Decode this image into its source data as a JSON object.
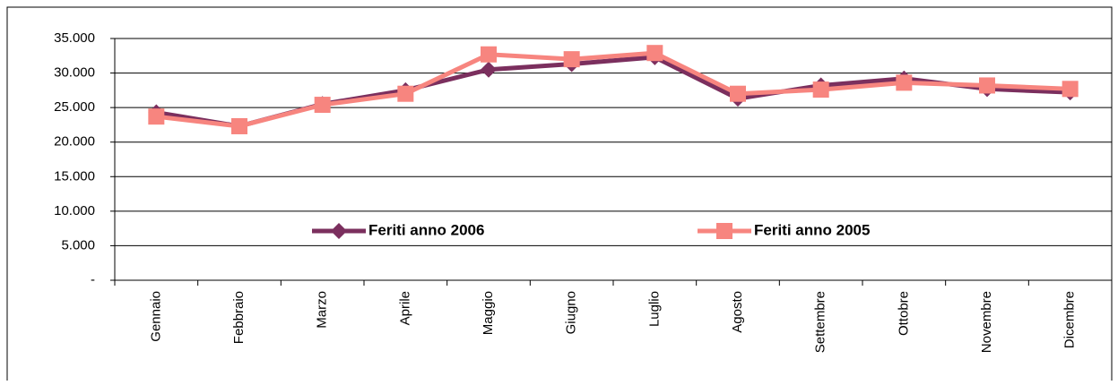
{
  "chart_data": {
    "type": "line",
    "categories": [
      "Gennaio",
      "Febbraio",
      "Marzo",
      "Aprile",
      "Maggio",
      "Giugno",
      "Luglio",
      "Agosto",
      "Settembre",
      "Ottobre",
      "Novembre",
      "Dicembre"
    ],
    "series": [
      {
        "name": "Feriti anno 2006",
        "color": "#7b2f5e",
        "marker": "diamond",
        "values": [
          24300,
          22300,
          25500,
          27500,
          30500,
          31300,
          32300,
          26300,
          28200,
          29200,
          27700,
          27200
        ]
      },
      {
        "name": "Feriti anno 2005",
        "color": "#f7857f",
        "marker": "square",
        "values": [
          23700,
          22300,
          25400,
          27000,
          32700,
          32000,
          32900,
          27000,
          27600,
          28600,
          28200,
          27700
        ]
      }
    ],
    "ylim": [
      0,
      35000
    ],
    "yticks": [
      {
        "value": 0,
        "label": "-"
      },
      {
        "value": 5000,
        "label": "5.000"
      },
      {
        "value": 10000,
        "label": "10.000"
      },
      {
        "value": 15000,
        "label": "15.000"
      },
      {
        "value": 20000,
        "label": "20.000"
      },
      {
        "value": 25000,
        "label": "25.000"
      },
      {
        "value": 30000,
        "label": "30.000"
      },
      {
        "value": 35000,
        "label": "35.000"
      }
    ],
    "grid": true
  }
}
